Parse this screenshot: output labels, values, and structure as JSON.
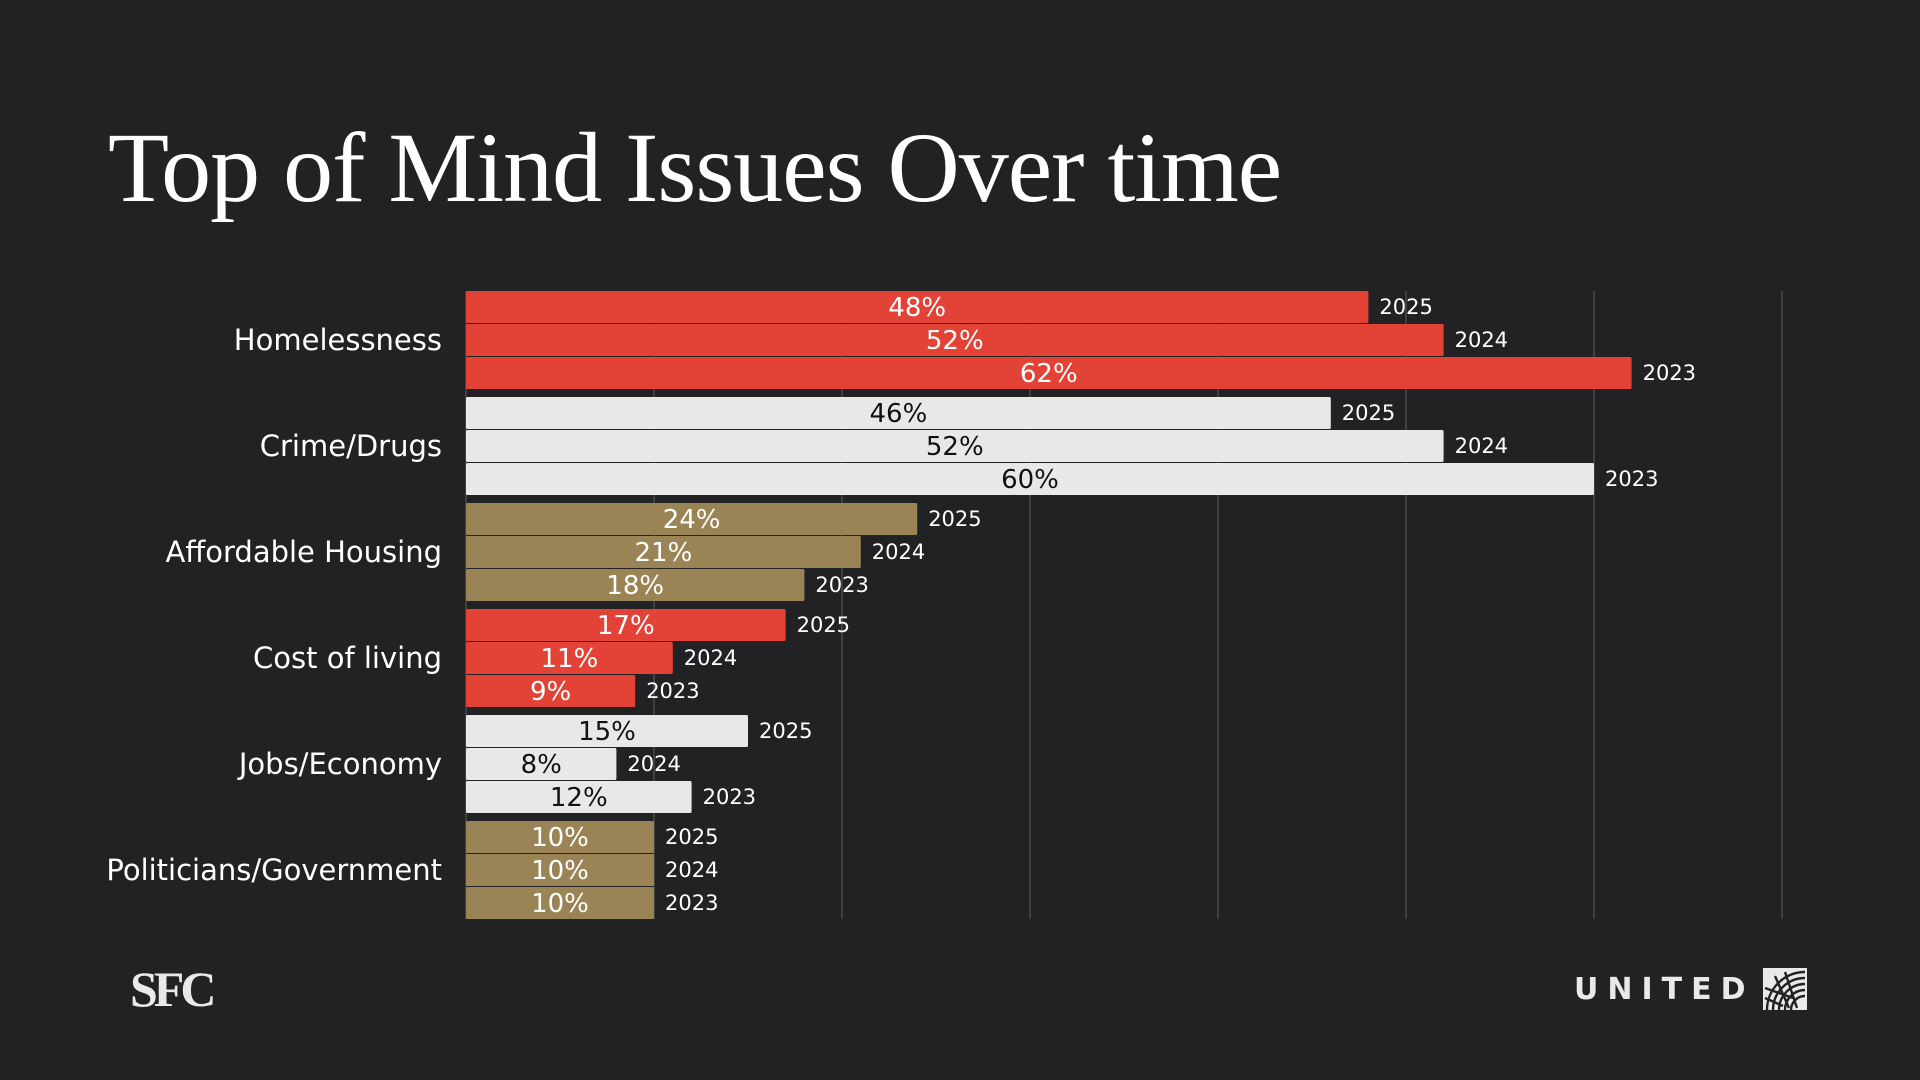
{
  "title": "Top of Mind Issues Over time",
  "logos": {
    "left": "SFC",
    "right": "UNITED"
  },
  "colors": {
    "background": "#222224",
    "red": "#e34337",
    "light": "#e8e8e8",
    "gold": "#9a8456",
    "grid": "#4a4a4d"
  },
  "chart_data": {
    "type": "bar",
    "orientation": "horizontal",
    "title": "Top of Mind Issues Over time",
    "xlabel": "",
    "ylabel": "",
    "xlim": [
      0,
      70
    ],
    "grid_step": 10,
    "grid": true,
    "legend": "none (year labels placed at end of each bar)",
    "categories": [
      "Homelessness",
      "Crime/Drugs",
      "Affordable Housing",
      "Cost of living",
      "Jobs/Economy",
      "Politicians/Government"
    ],
    "bar_years": [
      "2025",
      "2024",
      "2023"
    ],
    "groups": [
      {
        "category": "Homelessness",
        "color": "red",
        "label_color": "#ffffff",
        "bars": [
          {
            "year": "2025",
            "value": 48,
            "label": "48%"
          },
          {
            "year": "2024",
            "value": 52,
            "label": "52%"
          },
          {
            "year": "2023",
            "value": 62,
            "label": "62%"
          }
        ]
      },
      {
        "category": "Crime/Drugs",
        "color": "light",
        "label_color": "#111111",
        "bars": [
          {
            "year": "2025",
            "value": 46,
            "label": "46%"
          },
          {
            "year": "2024",
            "value": 52,
            "label": "52%"
          },
          {
            "year": "2023",
            "value": 60,
            "label": "60%"
          }
        ]
      },
      {
        "category": "Affordable Housing",
        "color": "gold",
        "label_color": "#ffffff",
        "bars": [
          {
            "year": "2025",
            "value": 24,
            "label": "24%"
          },
          {
            "year": "2024",
            "value": 21,
            "label": "21%"
          },
          {
            "year": "2023",
            "value": 18,
            "label": "18%"
          }
        ]
      },
      {
        "category": "Cost of living",
        "color": "red",
        "label_color": "#ffffff",
        "bars": [
          {
            "year": "2025",
            "value": 17,
            "label": "17%"
          },
          {
            "year": "2024",
            "value": 11,
            "label": "11%"
          },
          {
            "year": "2023",
            "value": 9,
            "label": "9%"
          }
        ]
      },
      {
        "category": "Jobs/Economy",
        "color": "light",
        "label_color": "#111111",
        "bars": [
          {
            "year": "2025",
            "value": 15,
            "label": "15%"
          },
          {
            "year": "2024",
            "value": 8,
            "label": "8%"
          },
          {
            "year": "2023",
            "value": 12,
            "label": "12%"
          }
        ]
      },
      {
        "category": "Politicians/Government",
        "color": "gold",
        "label_color": "#ffffff",
        "bars": [
          {
            "year": "2025",
            "value": 10,
            "label": "10%"
          },
          {
            "year": "2024",
            "value": 10,
            "label": "10%"
          },
          {
            "year": "2023",
            "value": 10,
            "label": "10%"
          }
        ]
      }
    ]
  }
}
